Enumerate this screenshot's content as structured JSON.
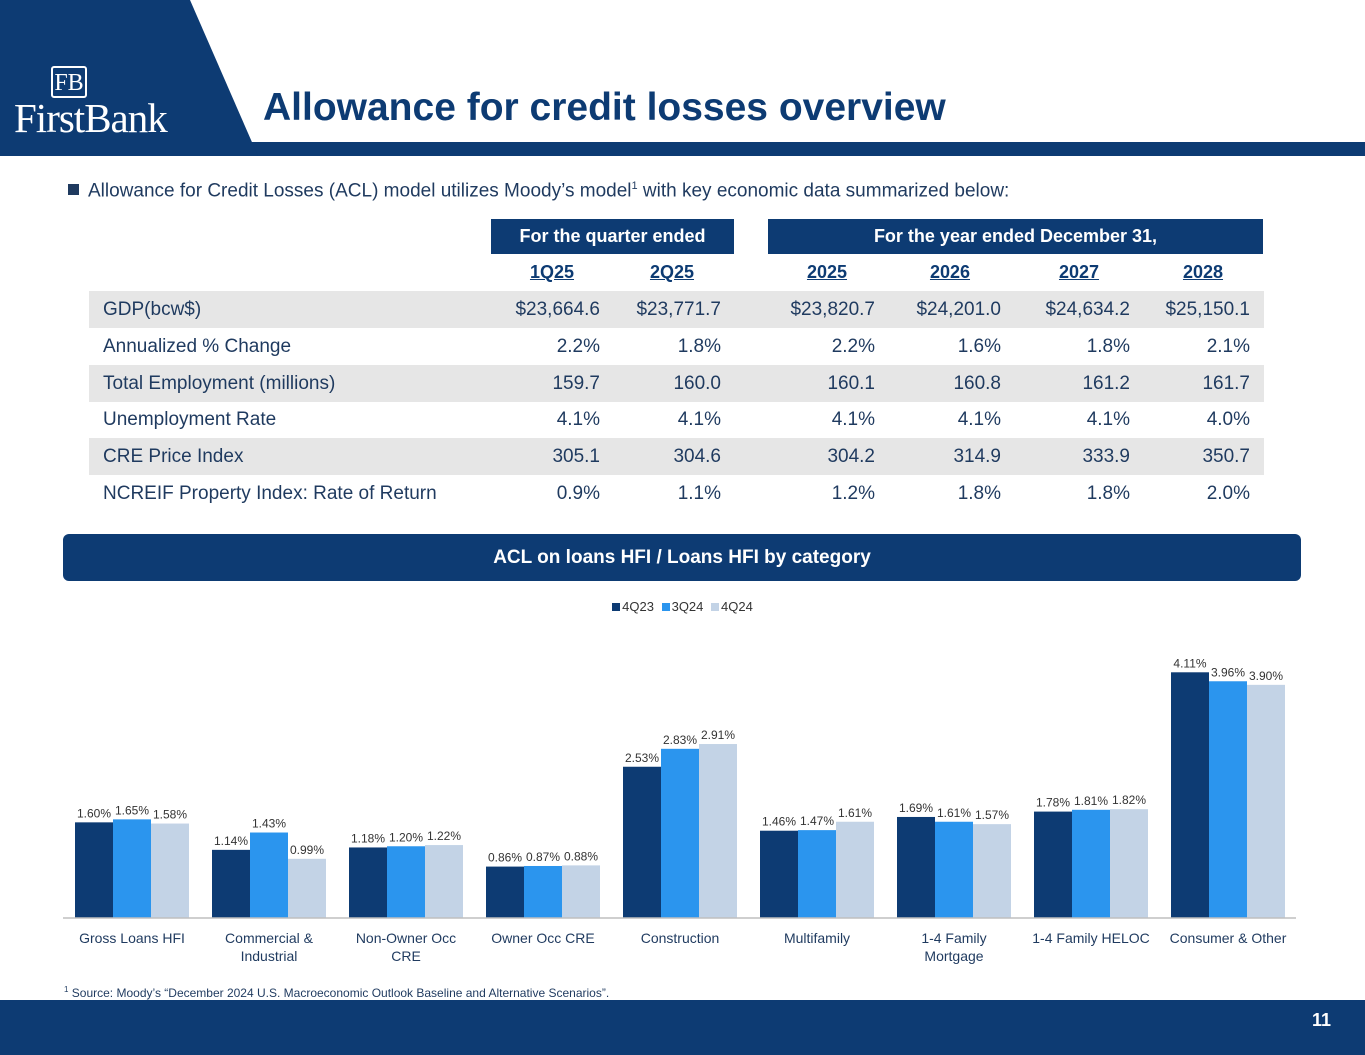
{
  "header": {
    "logo_mark": "FB",
    "logo_name": "FirstBank",
    "title": "Allowance for credit losses overview"
  },
  "intro": {
    "text_before": "Allowance for Credit Losses (ACL) model utilizes Moody’s model",
    "superscript": "1",
    "text_after": " with key economic data summarized below:"
  },
  "table": {
    "group_headers": {
      "quarter": "For the quarter ended",
      "year": "For the year ended December 31,"
    },
    "columns": [
      "1Q25",
      "2Q25",
      "2025",
      "2026",
      "2027",
      "2028"
    ],
    "rows": [
      {
        "label": "GDP(bcw$)",
        "values": [
          "$23,664.6",
          "$23,771.7",
          "$23,820.7",
          "$24,201.0",
          "$24,634.2",
          "$25,150.1"
        ]
      },
      {
        "label": "Annualized % Change",
        "values": [
          "2.2%",
          "1.8%",
          "2.2%",
          "1.6%",
          "1.8%",
          "2.1%"
        ]
      },
      {
        "label": "Total Employment (millions)",
        "values": [
          "159.7",
          "160.0",
          "160.1",
          "160.8",
          "161.2",
          "161.7"
        ]
      },
      {
        "label": "Unemployment Rate",
        "values": [
          "4.1%",
          "4.1%",
          "4.1%",
          "4.1%",
          "4.1%",
          "4.0%"
        ]
      },
      {
        "label": "CRE Price Index",
        "values": [
          "305.1",
          "304.6",
          "304.2",
          "314.9",
          "333.9",
          "350.7"
        ]
      },
      {
        "label": "NCREIF Property Index: Rate of Return",
        "values": [
          "0.9%",
          "1.1%",
          "1.2%",
          "1.8%",
          "1.8%",
          "2.0%"
        ]
      }
    ]
  },
  "section_band": "ACL on loans HFI / Loans HFI by category",
  "chart_data": {
    "type": "bar",
    "title": "ACL on loans HFI / Loans HFI by category",
    "categories": [
      "Gross Loans HFI",
      "Commercial & Industrial",
      "Non-Owner Occ CRE",
      "Owner Occ CRE",
      "Construction",
      "Multifamily",
      "1-4 Family Mortgage",
      "1-4 Family HELOC",
      "Consumer & Other"
    ],
    "category_lines": [
      [
        "Gross Loans HFI"
      ],
      [
        "Commercial &",
        "Industrial"
      ],
      [
        "Non-Owner Occ",
        "CRE"
      ],
      [
        "Owner Occ CRE"
      ],
      [
        "Construction"
      ],
      [
        "Multifamily"
      ],
      [
        "1-4 Family",
        "Mortgage"
      ],
      [
        "1-4 Family HELOC"
      ],
      [
        "Consumer & Other"
      ]
    ],
    "series": [
      {
        "name": "4Q23",
        "color": "#0d3b73",
        "values": [
          1.6,
          1.14,
          1.18,
          0.86,
          2.53,
          1.46,
          1.69,
          1.78,
          4.11
        ],
        "labels": [
          "1.60%",
          "1.14%",
          "1.18%",
          "0.86%",
          "2.53%",
          "1.46%",
          "1.69%",
          "1.78%",
          "4.11%"
        ]
      },
      {
        "name": "3Q24",
        "color": "#2b95ee",
        "values": [
          1.65,
          1.43,
          1.2,
          0.87,
          2.83,
          1.47,
          1.61,
          1.81,
          3.96
        ],
        "labels": [
          "1.65%",
          "1.43%",
          "1.20%",
          "0.87%",
          "2.83%",
          "1.47%",
          "1.61%",
          "1.81%",
          "3.96%"
        ]
      },
      {
        "name": "4Q24",
        "color": "#c3d3e6",
        "values": [
          1.58,
          0.99,
          1.22,
          0.88,
          2.91,
          1.61,
          1.57,
          1.82,
          3.9
        ],
        "labels": [
          "1.58%",
          "0.99%",
          "1.22%",
          "0.88%",
          "2.91%",
          "1.61%",
          "1.57%",
          "1.82%",
          "3.90%"
        ]
      }
    ],
    "ylim": [
      0,
      4.6
    ],
    "grid": false,
    "legend_position": "top-center",
    "value_axis_visible": false
  },
  "footnote": {
    "superscript": "1",
    "text": " Source: Moody’s “December 2024 U.S. Macroeconomic Outlook Baseline and Alternative Scenarios”."
  },
  "page_number": "11",
  "colors": {
    "navy": "#0d3b73",
    "blue": "#2b95ee",
    "light_blue": "#c3d3e6",
    "row_shade": "#e6e6e6"
  }
}
